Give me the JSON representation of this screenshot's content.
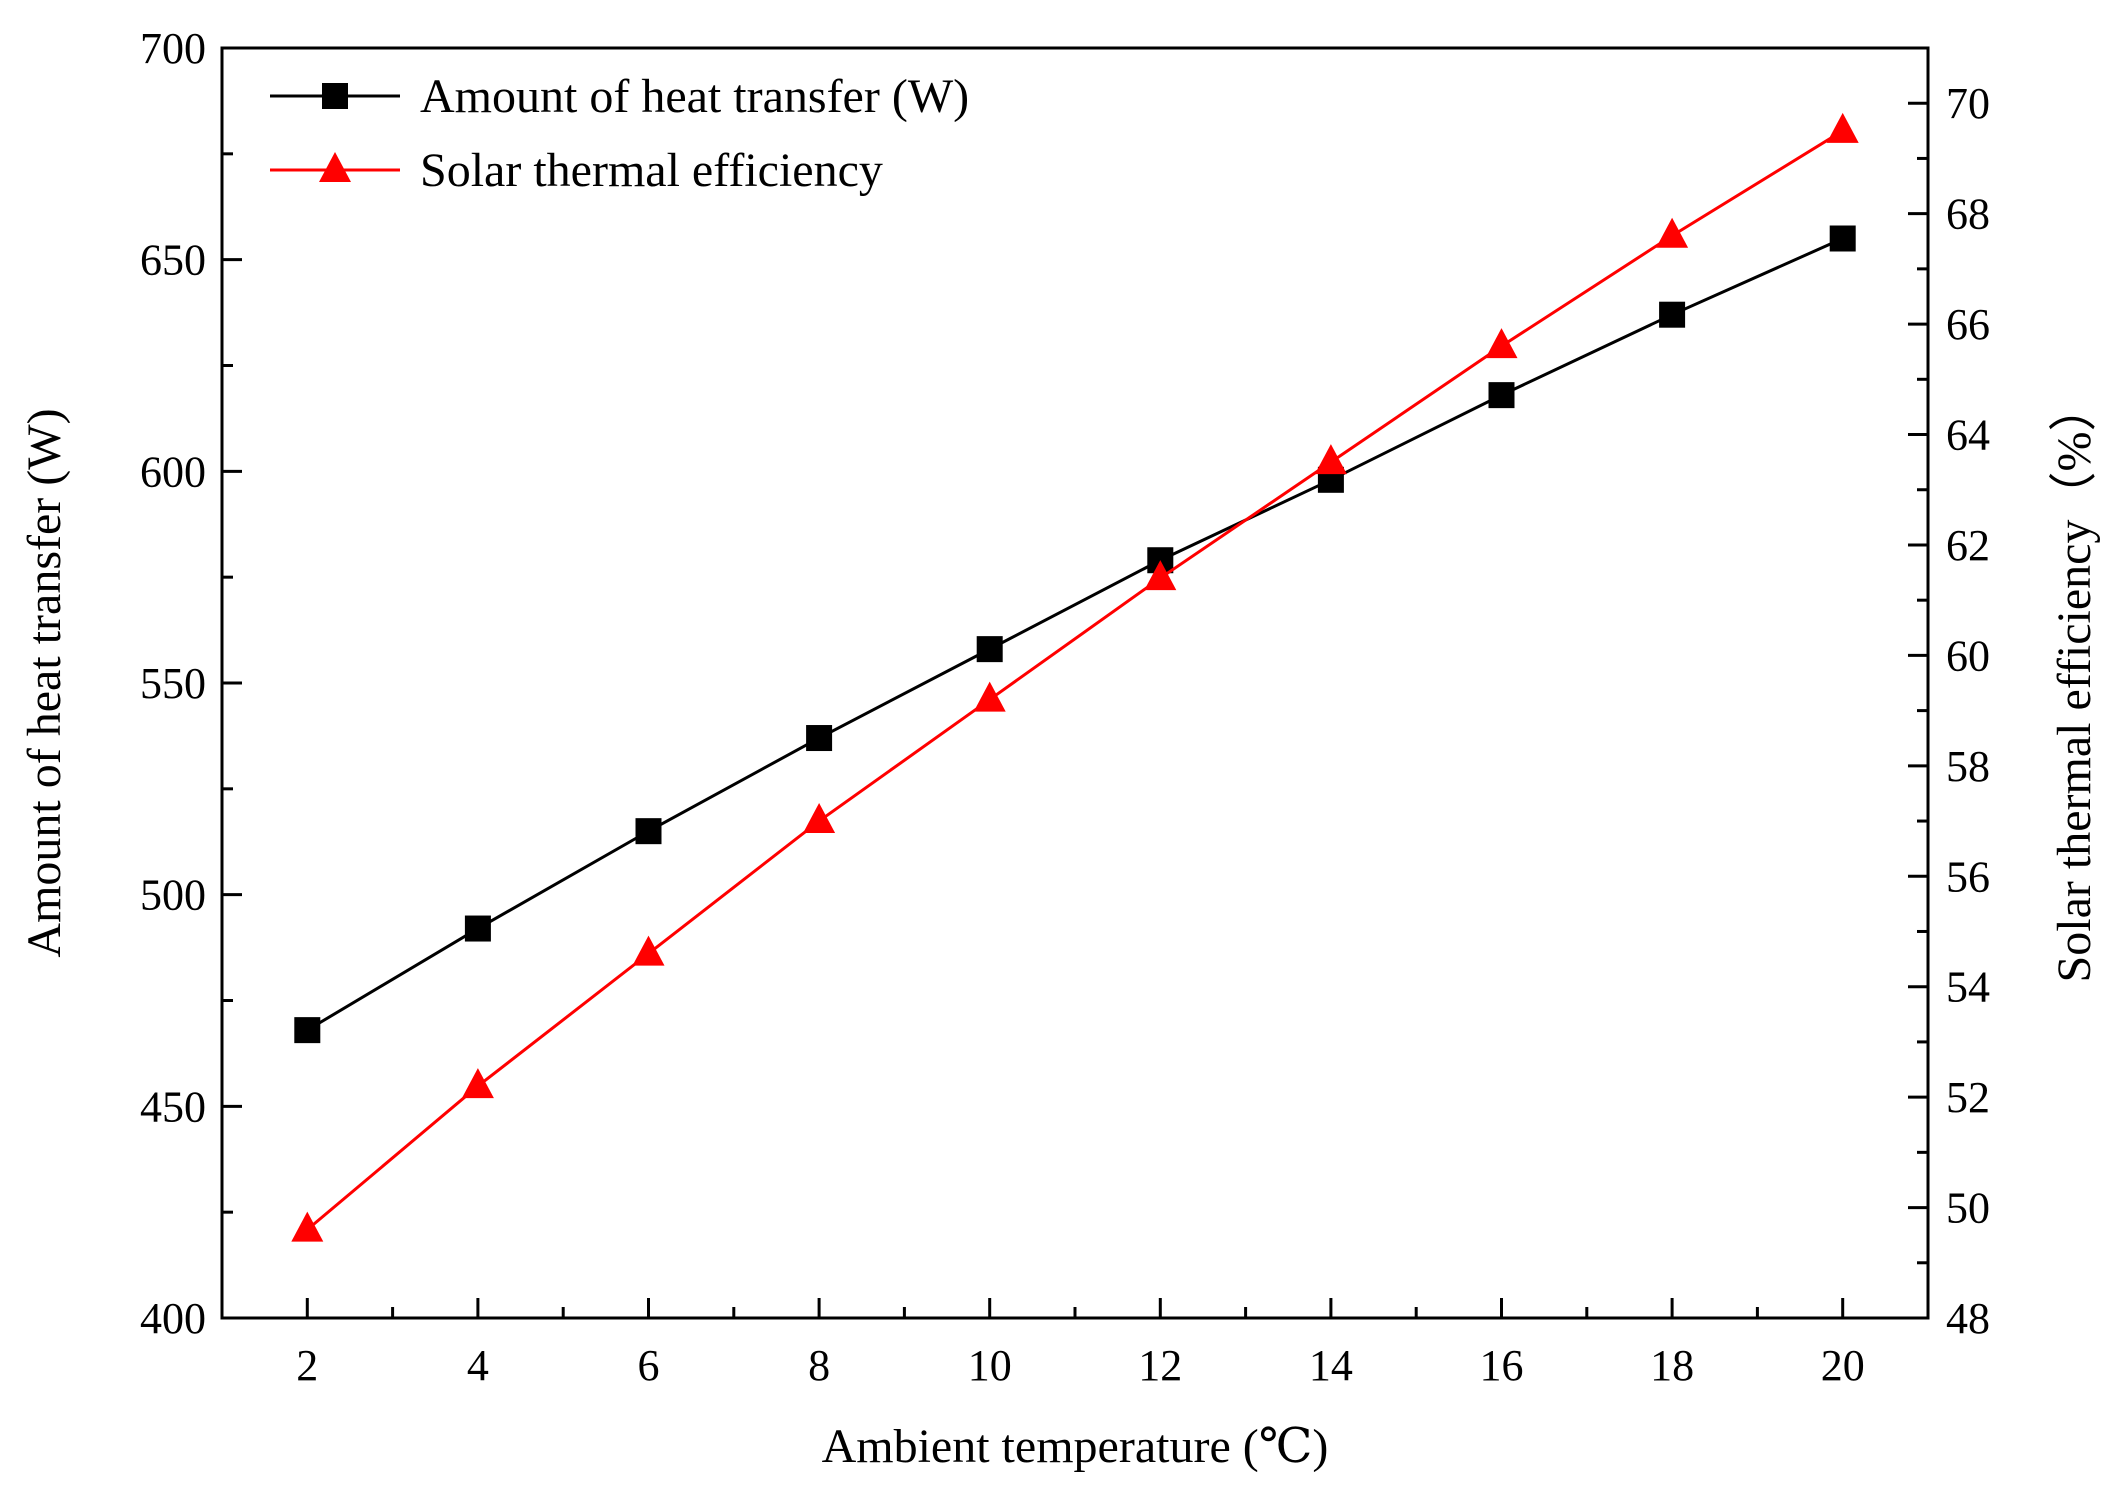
{
  "chart_data": {
    "type": "line",
    "x": [
      2,
      4,
      6,
      8,
      10,
      12,
      14,
      16,
      18,
      20
    ],
    "xlabel": "Ambient temperature (℃)",
    "ylabel_left": "Amount of heat transfer (W)",
    "ylabel_right": "Solar thermal efficiency（%）",
    "xlim": [
      1,
      21
    ],
    "ylim_left": [
      400,
      700
    ],
    "ylim_right": [
      48,
      71
    ],
    "x_ticks": [
      2,
      4,
      6,
      8,
      10,
      12,
      14,
      16,
      18,
      20
    ],
    "y_left_ticks": [
      400,
      450,
      500,
      550,
      600,
      650,
      700
    ],
    "y_right_ticks": [
      48,
      50,
      52,
      54,
      56,
      58,
      60,
      62,
      64,
      66,
      68,
      70
    ],
    "legend_position": "top-left",
    "series": [
      {
        "name": "Amount of heat transfer (W)",
        "axis": "left",
        "color": "#000000",
        "marker": "square",
        "values": [
          468,
          492,
          515,
          537,
          558,
          579,
          598,
          618,
          637,
          655
        ]
      },
      {
        "name": "Solar thermal efficiency",
        "axis": "right",
        "color": "#ff0000",
        "marker": "triangle",
        "values": [
          49.6,
          52.2,
          54.6,
          57.0,
          59.2,
          61.4,
          63.5,
          65.6,
          67.6,
          69.5
        ]
      }
    ]
  }
}
